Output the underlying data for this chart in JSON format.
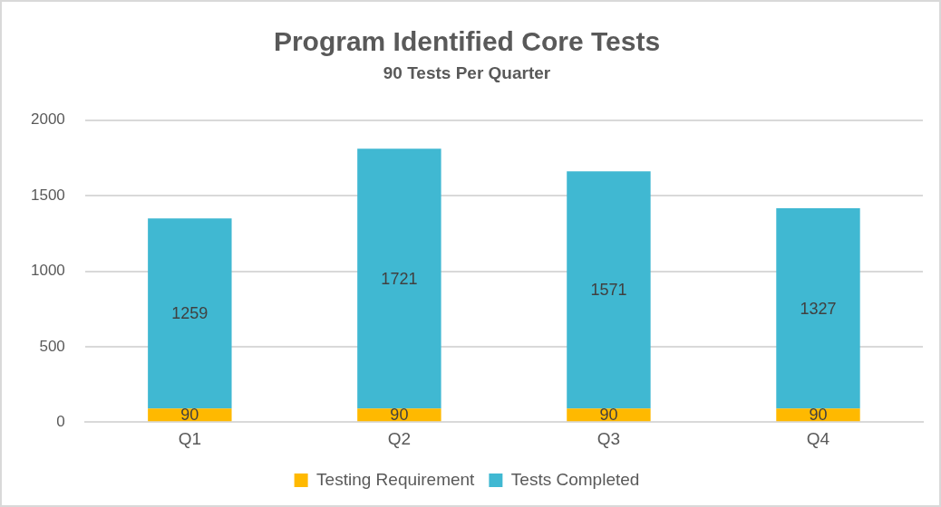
{
  "chart_data": {
    "type": "bar",
    "title": "Program Identified Core Tests",
    "subtitle": "90 Tests Per Quarter",
    "categories": [
      "Q1",
      "Q2",
      "Q3",
      "Q4"
    ],
    "series": [
      {
        "name": "Testing Requirement",
        "color": "#ffb900",
        "values": [
          90,
          90,
          90,
          90
        ]
      },
      {
        "name": "Tests Completed",
        "color": "#40b8d2",
        "values": [
          1259,
          1721,
          1571,
          1327
        ]
      }
    ],
    "stacked": true,
    "ylim": [
      0,
      2000
    ],
    "yticks": [
      0,
      500,
      1000,
      1500,
      2000
    ],
    "grid": "y",
    "legend": "bottom",
    "data_labels": true
  }
}
